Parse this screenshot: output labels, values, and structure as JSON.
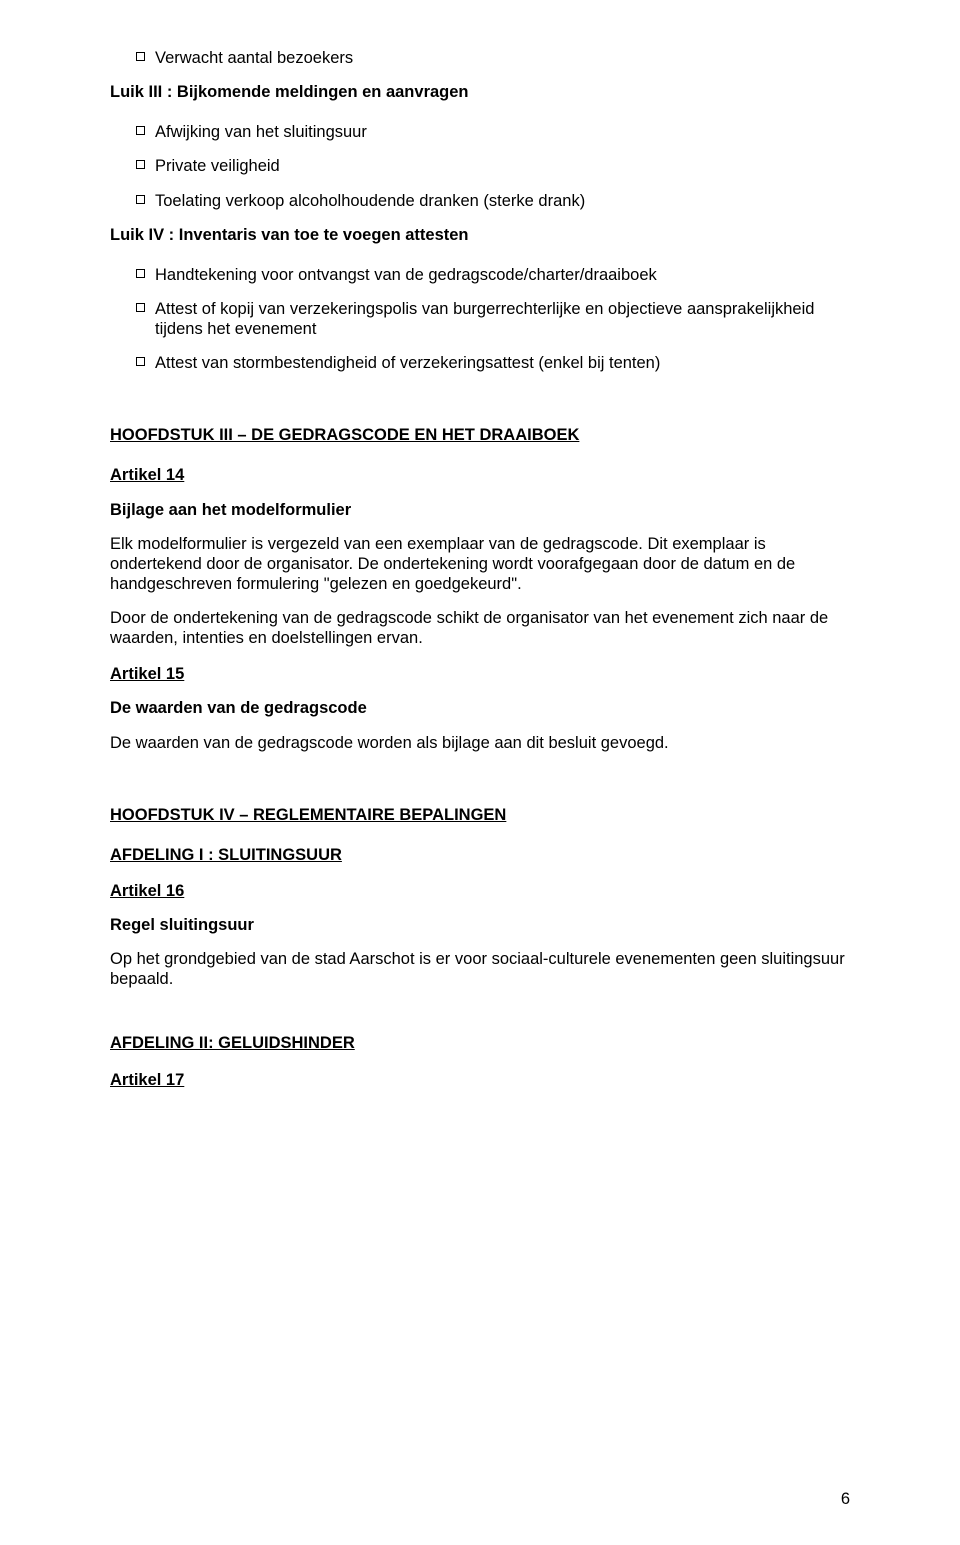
{
  "colors": {
    "text": "#000000",
    "background": "#ffffff",
    "bullet_border": "#000000"
  },
  "typography": {
    "font_family": "Arial",
    "body_size_pt": 12,
    "line_height": 1.22,
    "bold_weight": 700
  },
  "bullets": {
    "b0": "Verwacht aantal bezoekers"
  },
  "luik3": {
    "title": "Luik III : Bijkomende meldingen en aanvragen",
    "items": {
      "i0": "Afwijking van het sluitingsuur",
      "i1": "Private veiligheid",
      "i2": "Toelating verkoop alcoholhoudende dranken (sterke drank)"
    }
  },
  "luik4": {
    "title": "Luik IV : Inventaris van toe te voegen attesten",
    "items": {
      "i0": "Handtekening voor ontvangst van de gedragscode/charter/draaiboek",
      "i1": "Attest of kopij van verzekeringspolis van burgerrechterlijke en objectieve aansprakelijkheid tijdens het evenement",
      "i2": "Attest van stormbestendigheid of verzekeringsattest (enkel bij tenten)"
    }
  },
  "h3": {
    "title": "HOOFDSTUK III – DE GEDRAGSCODE EN HET DRAAIBOEK",
    "art14": "Artikel 14",
    "art14_sub": "Bijlage aan het modelformulier",
    "p1": "Elk modelformulier is vergezeld van een exemplaar van de gedragscode. Dit exemplaar is ondertekend door de organisator. De ondertekening wordt voorafgegaan door de datum en de handgeschreven formulering \"gelezen en goedgekeurd\".",
    "p2": "Door de ondertekening van de gedragscode schikt de organisator van het evenement zich naar de waarden, intenties en doelstellingen ervan.",
    "art15": "Artikel 15",
    "art15_sub": "De waarden van de gedragscode",
    "p3": "De waarden van de gedragscode worden als bijlage aan dit besluit gevoegd."
  },
  "h4": {
    "title": "HOOFDSTUK IV – REGLEMENTAIRE BEPALINGEN",
    "afd1": "AFDELING I : SLUITINGSUUR",
    "art16": "Artikel 16",
    "art16_sub": "Regel sluitingsuur",
    "p1": "Op het grondgebied van de stad Aarschot is er voor sociaal-culturele evenementen geen sluitingsuur bepaald.",
    "afd2": "AFDELING II: GELUIDSHINDER",
    "art17": "Artikel 17"
  },
  "page_number": "6"
}
